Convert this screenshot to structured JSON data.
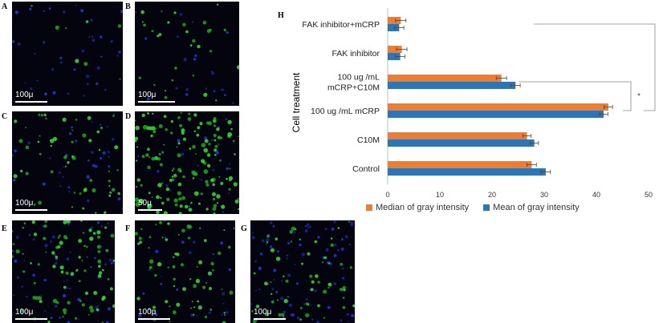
{
  "panels": [
    {
      "letter": "A",
      "scale": "100μ",
      "green": 8,
      "blue": 40,
      "seed": 11,
      "dense": false
    },
    {
      "letter": "B",
      "scale": "100μ",
      "green": 30,
      "blue": 20,
      "seed": 23,
      "dense": false
    },
    {
      "letter": "C",
      "scale": "100μ",
      "green": 55,
      "blue": 35,
      "seed": 37,
      "dense": false
    },
    {
      "letter": "D",
      "scale": "50μ",
      "green": 160,
      "blue": 20,
      "seed": 41,
      "dense": true
    },
    {
      "letter": "E",
      "scale": "100μ",
      "green": 90,
      "blue": 60,
      "seed": 53,
      "dense": false
    },
    {
      "letter": "F",
      "scale": "100μ",
      "green": 70,
      "blue": 25,
      "seed": 67,
      "dense": false
    },
    {
      "letter": "G",
      "scale": "100μ",
      "green": 60,
      "blue": 80,
      "seed": 79,
      "dense": false
    }
  ],
  "chart_data": {
    "type": "bar",
    "orientation": "horizontal",
    "panel_letter": "H",
    "ylabel": "Cell treatment",
    "categories": [
      "FAK inhibitor+mCRP",
      "FAK inhibitor",
      "100 ug /mL mCRP+C10M",
      "100 ug /mL mCRP",
      "C10M",
      "Control"
    ],
    "category_lines": [
      [
        "FAK inhibitor+mCRP"
      ],
      [
        "FAK inhibitor"
      ],
      [
        "100 ug /mL",
        "mCRP+C10M"
      ],
      [
        "100 ug /mL mCRP"
      ],
      [
        "C10M"
      ],
      [
        "Control"
      ]
    ],
    "series": [
      {
        "name": "Median of gray intensity",
        "color": "#ed7d31",
        "values": [
          2.5,
          2.7,
          21.8,
          42.3,
          26.7,
          27.6
        ],
        "errors": [
          1.0,
          1.0,
          1.0,
          0.8,
          0.8,
          0.9
        ]
      },
      {
        "name": "Mean of gray intensity",
        "color": "#2e75b6",
        "values": [
          2.2,
          2.4,
          24.5,
          41.4,
          28.1,
          30.3
        ],
        "errors": [
          0.9,
          0.9,
          0.9,
          0.8,
          0.8,
          0.9
        ]
      }
    ],
    "xlim": [
      0,
      50
    ],
    "xticks": [
      0,
      10,
      20,
      30,
      40,
      50
    ],
    "grid": false,
    "legend_position": "bottom",
    "significance": [
      "*",
      "* *"
    ]
  }
}
